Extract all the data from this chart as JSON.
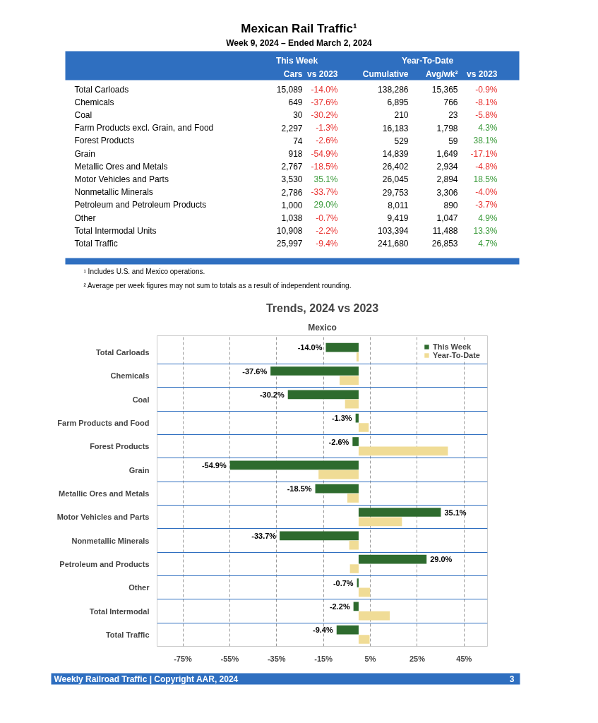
{
  "chart_data": [
    {
      "type": "other",
      "title": "Mexican Rail Traffic¹",
      "subtitle": "Week 9, 2024 – Ended March 2, 2024",
      "categories": [
        "Total Carloads",
        "Chemicals",
        "Coal",
        "Farm Products excl. Grain, and Food",
        "Forest Products",
        "Grain",
        "Metallic Ores and Metals",
        "Motor Vehicles and Parts",
        "Nonmetallic Minerals",
        "Petroleum and Petroleum Products",
        "Other",
        "Total Intermodal Units",
        "Total Traffic"
      ],
      "series": [
        {
          "name": "Cars",
          "values": [
            15089,
            649,
            30,
            2297,
            74,
            918,
            2767,
            3530,
            2786,
            1000,
            1038,
            10908,
            25997
          ],
          "value_labels": [
            "15,089",
            "649",
            "30",
            "2,297",
            "74",
            "918",
            "2,767",
            "3,530",
            "2,786",
            "1,000",
            "1,038",
            "10,908",
            "25,997"
          ]
        },
        {
          "name": "vs 2023",
          "values": [
            -14.0,
            -37.6,
            -30.2,
            -1.3,
            -2.6,
            -54.9,
            -18.5,
            35.1,
            -33.7,
            29.0,
            -0.7,
            -2.2,
            -9.4
          ],
          "value_labels": [
            "-14.0%",
            "-37.6%",
            "-30.2%",
            "-1.3%",
            "-2.6%",
            "-54.9%",
            "-18.5%",
            "35.1%",
            "-33.7%",
            "29.0%",
            "-0.7%",
            "-2.2%",
            "-9.4%"
          ],
          "colors": [
            "#e8312f",
            "#e8312f",
            "#e8312f",
            "#e8312f",
            "#e8312f",
            "#e8312f",
            "#e8312f",
            "#3a9a3a",
            "#e8312f",
            "#3a9a3a",
            "#e8312f",
            "#e8312f",
            "#e8312f"
          ]
        },
        {
          "name": "Cumulative",
          "values": [
            138286,
            6895,
            210,
            16183,
            529,
            14839,
            26402,
            26045,
            29753,
            8011,
            9419,
            103394,
            241680
          ],
          "value_labels": [
            "138,286",
            "6,895",
            "210",
            "16,183",
            "529",
            "14,839",
            "26,402",
            "26,045",
            "29,753",
            "8,011",
            "9,419",
            "103,394",
            "241,680"
          ]
        },
        {
          "name": "Avg/wk²",
          "values": [
            15365,
            766,
            23,
            1798,
            59,
            1649,
            2934,
            2894,
            3306,
            890,
            1047,
            11488,
            26853
          ],
          "value_labels": [
            "15,365",
            "766",
            "23",
            "1,798",
            "59",
            "1,649",
            "2,934",
            "2,894",
            "3,306",
            "890",
            "1,047",
            "11,488",
            "26,853"
          ]
        },
        {
          "name": "vs 2023",
          "values": [
            -0.9,
            -8.1,
            -5.8,
            4.3,
            38.1,
            -17.1,
            -4.8,
            18.5,
            -4.0,
            -3.7,
            4.9,
            13.3,
            4.7
          ],
          "value_labels": [
            "-0.9%",
            "-8.1%",
            "-5.8%",
            "4.3%",
            "38.1%",
            "-17.1%",
            "-4.8%",
            "18.5%",
            "-4.0%",
            "-3.7%",
            "4.9%",
            "13.3%",
            "4.7%"
          ],
          "colors": [
            "#e8312f",
            "#e8312f",
            "#e8312f",
            "#3a9a3a",
            "#3a9a3a",
            "#e8312f",
            "#e8312f",
            "#3a9a3a",
            "#e8312f",
            "#e8312f",
            "#3a9a3a",
            "#3a9a3a",
            "#3a9a3a"
          ]
        }
      ],
      "annotations": [
        "This Week",
        "Year-To-Date",
        "¹ Includes U.S. and Mexico operations.",
        "² Average per week figures may not sum to totals as a result of independent rounding."
      ]
    },
    {
      "type": "bar",
      "orientation": "horizontal",
      "title": "Trends, 2024 vs 2023",
      "subtitle": "Mexico",
      "categories": [
        "Total Carloads",
        "Chemicals",
        "Coal",
        "Farm Products and Food",
        "Forest Products",
        "Grain",
        "Metallic Ores and Metals",
        "Motor Vehicles and Parts",
        "Nonmetallic Minerals",
        "Petroleum and Products",
        "Other",
        "Total Intermodal",
        "Total Traffic"
      ],
      "series": [
        {
          "name": "This Week",
          "color": "#2e6b2e",
          "values": [
            -14.0,
            -37.6,
            -30.2,
            -1.3,
            -2.6,
            -54.9,
            -18.5,
            35.1,
            -33.7,
            29.0,
            -0.7,
            -2.2,
            -9.4
          ],
          "value_labels": [
            "-14.0%",
            "-37.6%",
            "-30.2%",
            "-1.3%",
            "-2.6%",
            "-54.9%",
            "-18.5%",
            "35.1%",
            "-33.7%",
            "29.0%",
            "-0.7%",
            "-2.2%",
            "-9.4%"
          ]
        },
        {
          "name": "Year-To-Date",
          "color": "#f0dc96",
          "values": [
            -0.9,
            -8.1,
            -5.8,
            4.3,
            38.1,
            -17.1,
            -4.8,
            18.5,
            -4.0,
            -3.7,
            4.9,
            13.3,
            4.7
          ]
        }
      ],
      "xlim": [
        -86,
        55
      ],
      "xticks": [
        {
          "value": -75,
          "label": "-75%"
        },
        {
          "value": -55,
          "label": "-55%"
        },
        {
          "value": -35,
          "label": "-35%"
        },
        {
          "value": -15,
          "label": "-15%"
        },
        {
          "value": 5,
          "label": "5%"
        },
        {
          "value": 25,
          "label": "25%"
        },
        {
          "value": 45,
          "label": "45%"
        }
      ],
      "grid": true,
      "legend": "top right",
      "annotations": [
        "Weekly Railroad Traffic | Copyright AAR, 2024",
        "3"
      ]
    }
  ]
}
